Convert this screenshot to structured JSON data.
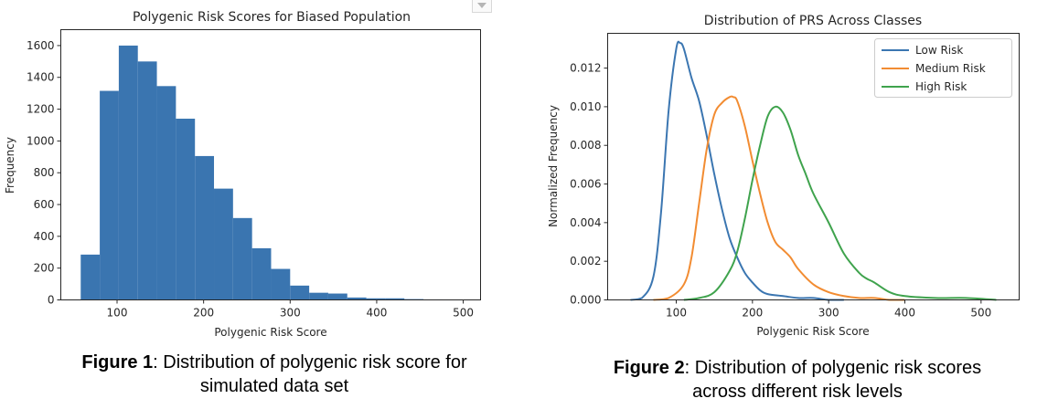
{
  "chart_data": [
    {
      "type": "bar",
      "title": "Polygenic Risk Scores for Biased Population",
      "xlabel": "Polygenic Risk Score",
      "ylabel": "Frequency",
      "xlim": [
        35,
        520
      ],
      "ylim": [
        0,
        1700
      ],
      "xticks": [
        100,
        200,
        300,
        400,
        500
      ],
      "yticks": [
        0,
        200,
        400,
        600,
        800,
        1000,
        1200,
        1400,
        1600
      ],
      "bin_edges": [
        58,
        80,
        102,
        124,
        146,
        168,
        190,
        212,
        234,
        256,
        278,
        300,
        322,
        344,
        366,
        388,
        410,
        432,
        454,
        476,
        498
      ],
      "values": [
        285,
        1315,
        1600,
        1500,
        1345,
        1140,
        905,
        700,
        515,
        325,
        195,
        90,
        45,
        40,
        15,
        10,
        10,
        5,
        3,
        2
      ],
      "color": "#3a75b0",
      "grid": false
    },
    {
      "type": "line",
      "title": "Distribution of PRS Across Classes",
      "xlabel": "Polygenic Risk Score",
      "ylabel": "Normalized Frequency",
      "xlim": [
        10,
        550
      ],
      "ylim": [
        0,
        0.0138
      ],
      "xticks": [
        100,
        200,
        300,
        400,
        500
      ],
      "yticks": [
        0.0,
        0.002,
        0.004,
        0.006,
        0.008,
        0.01,
        0.012
      ],
      "ytick_labels": [
        "0.000",
        "0.002",
        "0.004",
        "0.006",
        "0.008",
        "0.010",
        "0.012"
      ],
      "legend_position": "top-right",
      "grid": false,
      "series": [
        {
          "name": "Low Risk",
          "color": "#3b76b1",
          "x": [
            40,
            55,
            70,
            80,
            90,
            100,
            105,
            110,
            120,
            130,
            140,
            150,
            160,
            170,
            180,
            190,
            200,
            210,
            220,
            240,
            260,
            280,
            300,
            320
          ],
          "y": [
            0,
            0.0001,
            0.0012,
            0.0045,
            0.0098,
            0.013,
            0.0133,
            0.013,
            0.0115,
            0.0103,
            0.0085,
            0.0065,
            0.0047,
            0.0032,
            0.0022,
            0.0014,
            0.0009,
            0.0005,
            0.0003,
            0.0002,
            0.0001,
            0.0001,
            0,
            0
          ]
        },
        {
          "name": "Medium Risk",
          "color": "#f28c32",
          "x": [
            70,
            90,
            110,
            120,
            130,
            140,
            150,
            160,
            170,
            175,
            180,
            190,
            200,
            210,
            220,
            230,
            240,
            250,
            260,
            280,
            300,
            320,
            340,
            360,
            380,
            400
          ],
          "y": [
            0,
            0.0001,
            0.0008,
            0.0022,
            0.005,
            0.0078,
            0.0096,
            0.0102,
            0.0105,
            0.0105,
            0.0103,
            0.009,
            0.0072,
            0.0055,
            0.004,
            0.003,
            0.0026,
            0.0022,
            0.0016,
            0.0008,
            0.0004,
            0.0002,
            0.0001,
            0.0001,
            0,
            0
          ]
        },
        {
          "name": "High Risk",
          "color": "#3fa34d",
          "x": [
            110,
            130,
            150,
            170,
            180,
            190,
            200,
            210,
            220,
            230,
            240,
            250,
            260,
            270,
            280,
            300,
            320,
            340,
            350,
            360,
            380,
            400,
            440,
            480,
            520
          ],
          "y": [
            0,
            0.0001,
            0.0004,
            0.0015,
            0.0025,
            0.0042,
            0.0062,
            0.008,
            0.0095,
            0.01,
            0.0097,
            0.0088,
            0.0075,
            0.0065,
            0.0055,
            0.004,
            0.0024,
            0.0014,
            0.0011,
            0.0009,
            0.0004,
            0.0002,
            0.0001,
            0.0001,
            0
          ]
        }
      ]
    }
  ],
  "captions": [
    {
      "label": "Figure 1",
      "text_line1": ": Distribution of polygenic risk score for",
      "text_line2": "simulated data set"
    },
    {
      "label": "Figure 2",
      "text_line1": ": Distribution of polygenic risk scores",
      "text_line2": "across different risk levels"
    }
  ],
  "icons": {
    "scroll": "chevron-down-icon"
  }
}
